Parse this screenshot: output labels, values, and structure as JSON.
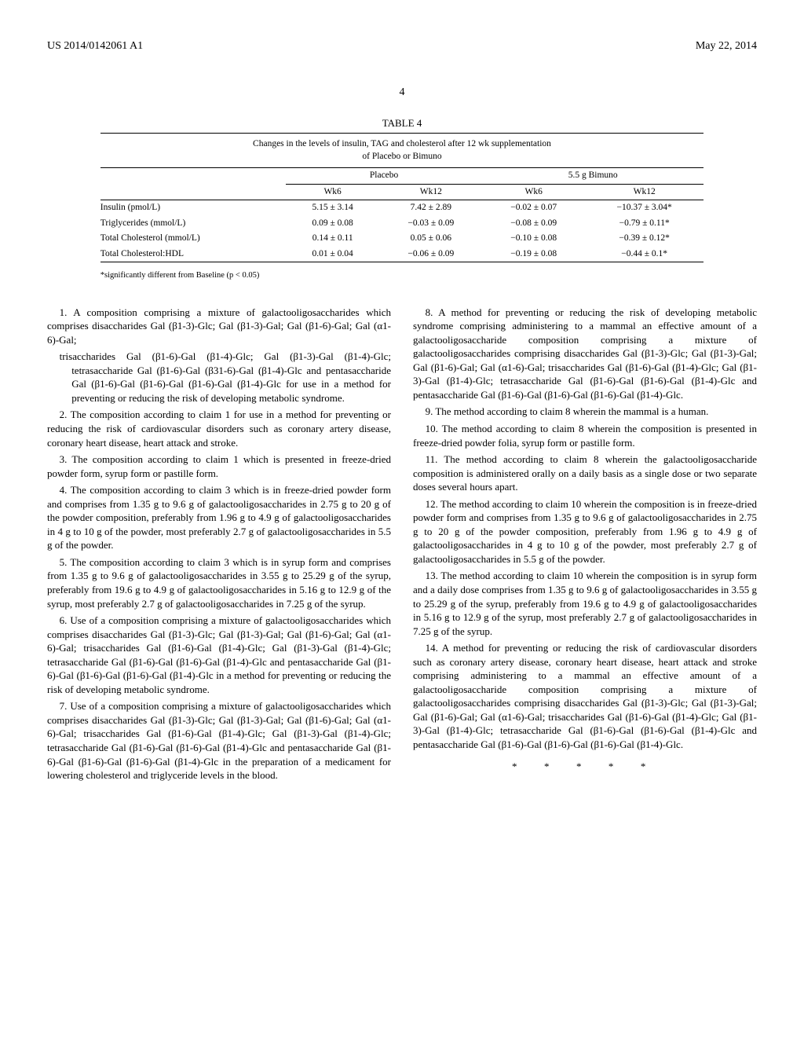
{
  "header": {
    "left": "US 2014/0142061 A1",
    "right": "May 22, 2014"
  },
  "page_number": "4",
  "table": {
    "label": "TABLE 4",
    "caption_line1": "Changes in the levels of insulin, TAG and cholesterol after 12 wk supplementation",
    "caption_line2": "of Placebo or Bimuno",
    "group1": "Placebo",
    "group2": "5.5 g Bimuno",
    "col_wk6": "Wk6",
    "col_wk12": "Wk12",
    "rows": [
      {
        "label": "Insulin (pmol/L)",
        "p6": "5.15 ± 3.14",
        "p12": "7.42 ± 2.89",
        "b6": "−0.02 ± 0.07",
        "b12": "−10.37 ± 3.04*"
      },
      {
        "label": "Triglycerides (mmol/L)",
        "p6": "0.09 ± 0.08",
        "p12": "−0.03 ± 0.09",
        "b6": "−0.08 ± 0.09",
        "b12": "−0.79 ± 0.11*"
      },
      {
        "label": "Total Cholesterol (mmol/L)",
        "p6": "0.14 ± 0.11",
        "p12": "0.05 ± 0.06",
        "b6": "−0.10 ± 0.08",
        "b12": "−0.39 ± 0.12*"
      },
      {
        "label": "Total Cholesterol:HDL",
        "p6": "0.01 ± 0.04",
        "p12": "−0.06 ± 0.09",
        "b6": "−0.19 ± 0.08",
        "b12": "−0.44 ± 0.1*"
      }
    ],
    "footnote": "*significantly different from Baseline (p < 0.05)"
  },
  "claims": {
    "c1": "1. A composition comprising a mixture of galactooligosaccharides which comprises disaccharides Gal (β1-3)-Glc; Gal (β1-3)-Gal; Gal (β1-6)-Gal; Gal (α1-6)-Gal;",
    "c1sub": "trisaccharides Gal (β1-6)-Gal (β1-4)-Glc; Gal (β1-3)-Gal (β1-4)-Glc; tetrasaccharide Gal (β1-6)-Gal (β31-6)-Gal (β1-4)-Glc and pentasaccharide Gal (β1-6)-Gal (β1-6)-Gal (β1-6)-Gal (β1-4)-Glc for use in a method for preventing or reducing the risk of developing metabolic syndrome.",
    "c2": "2. The composition according to claim 1 for use in a method for preventing or reducing the risk of cardiovascular disorders such as coronary artery disease, coronary heart disease, heart attack and stroke.",
    "c3": "3. The composition according to claim 1 which is presented in freeze-dried powder form, syrup form or pastille form.",
    "c4": "4. The composition according to claim 3 which is in freeze-dried powder form and comprises from 1.35 g to 9.6 g of galactooligosaccharides in 2.75 g to 20 g of the powder composition, preferably from 1.96 g to 4.9 g of galactooligosaccharides in 4 g to 10 g of the powder, most preferably 2.7 g of galactooligosaccharides in 5.5 g of the powder.",
    "c5": "5. The composition according to claim 3 which is in syrup form and comprises from 1.35 g to 9.6 g of galactooligosaccharides in 3.55 g to 25.29 g of the syrup, preferably from 19.6 g to 4.9 g of galactooligosaccharides in 5.16 g to 12.9 g of the syrup, most preferably 2.7 g of galactooligosaccharides in 7.25 g of the syrup.",
    "c6": "6. Use of a composition comprising a mixture of galactooligosaccharides which comprises disaccharides Gal (β1-3)-Glc; Gal (β1-3)-Gal; Gal (β1-6)-Gal; Gal (α1-6)-Gal; trisaccharides Gal (β1-6)-Gal (β1-4)-Glc; Gal (β1-3)-Gal (β1-4)-Glc; tetrasaccharide Gal (β1-6)-Gal (β1-6)-Gal (β1-4)-Glc and pentasaccharide Gal (β1-6)-Gal (β1-6)-Gal (β1-6)-Gal (β1-4)-Glc in a method for preventing or reducing the risk of developing metabolic syndrome.",
    "c7": "7. Use of a composition comprising a mixture of galactooligosaccharides which comprises disaccharides Gal (β1-3)-Glc; Gal (β1-3)-Gal; Gal (β1-6)-Gal; Gal (α1-6)-Gal; trisaccharides Gal (β1-6)-Gal (β1-4)-Glc; Gal (β1-3)-Gal (β1-4)-Glc; tetrasaccharide Gal (β1-6)-Gal (β1-6)-Gal (β1-4)-Glc and pentasaccharide Gal (β1-6)-Gal (β1-6)-Gal (β1-6)-Gal (β1-4)-Glc in the preparation of a medicament for lowering cholesterol and triglyceride levels in the blood.",
    "c8": "8. A method for preventing or reducing the risk of developing metabolic syndrome comprising administering to a mammal an effective amount of a galactooligosaccharide composition comprising a mixture of galactooligosaccharides comprising disaccharides Gal (β1-3)-Glc; Gal (β1-3)-Gal; Gal (β1-6)-Gal; Gal (α1-6)-Gal; trisaccharides Gal (β1-6)-Gal (β1-4)-Glc; Gal (β1-3)-Gal (β1-4)-Glc; tetrasaccharide Gal (β1-6)-Gal (β1-6)-Gal (β1-4)-Glc and pentasaccharide Gal (β1-6)-Gal (β1-6)-Gal (β1-6)-Gal (β1-4)-Glc.",
    "c9": "9. The method according to claim 8 wherein the mammal is a human.",
    "c10": "10. The method according to claim 8 wherein the composition is presented in freeze-dried powder folia, syrup form or pastille form.",
    "c11": "11. The method according to claim 8 wherein the galactooligosaccharide composition is administered orally on a daily basis as a single dose or two separate doses several hours apart.",
    "c12": "12. The method according to claim 10 wherein the composition is in freeze-dried powder form and comprises from 1.35 g to 9.6 g of galactooligosaccharides in 2.75 g to 20 g of the powder composition, preferably from 1.96 g to 4.9 g of galactooligosaccharides in 4 g to 10 g of the powder, most preferably 2.7 g of galactooligosaccharides in 5.5 g of the powder.",
    "c13": "13. The method according to claim 10 wherein the composition is in syrup form and a daily dose comprises from 1.35 g to 9.6 g of galactooligosaccharides in 3.55 g to 25.29 g of the syrup, preferably from 19.6 g to 4.9 g of galactooligosaccharides in 5.16 g to 12.9 g of the syrup, most preferably 2.7 g of galactooligosaccharides in 7.25 g of the syrup.",
    "c14": "14. A method for preventing or reducing the risk of cardiovascular disorders such as coronary artery disease, coronary heart disease, heart attack and stroke comprising administering to a mammal an effective amount of a galactooligosaccharide composition comprising a mixture of galactooligosaccharides comprising disaccharides Gal (β1-3)-Glc; Gal (β1-3)-Gal; Gal (β1-6)-Gal; Gal (α1-6)-Gal; trisaccharides Gal (β1-6)-Gal (β1-4)-Glc; Gal (β1-3)-Gal (β1-4)-Glc; tetrasaccharide Gal (β1-6)-Gal (β1-6)-Gal (β1-4)-Glc and pentasaccharide Gal (β1-6)-Gal (β1-6)-Gal (β1-6)-Gal (β1-4)-Glc."
  },
  "end_marks": "* * * * *"
}
